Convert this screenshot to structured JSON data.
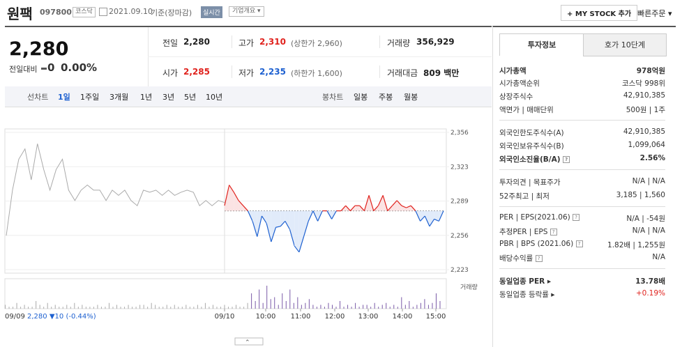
{
  "header": {
    "name": "원팩",
    "code": "097800",
    "market": "코스닥",
    "date": "2021.09.10",
    "basis": "기준(장마감)",
    "realtime": "실시간",
    "overview": "기업개요",
    "mystock": "MY STOCK 추가",
    "quick_order": "빠른주문"
  },
  "price": {
    "current": "2,280",
    "change_label": "전일대비",
    "change_value": "0",
    "change_pct": "0.00%",
    "prev_close_label": "전일",
    "prev_close": "2,280",
    "high_label": "고가",
    "high": "2,310",
    "upper_limit": "(상한가 2,960)",
    "volume_label": "거래량",
    "volume": "356,929",
    "open_label": "시가",
    "open": "2,285",
    "low_label": "저가",
    "low": "2,235",
    "lower_limit": "(하한가 1,600)",
    "amount_label": "거래대금",
    "amount": "809 백만"
  },
  "chart_tabs": {
    "line_label": "선차트",
    "line_items": [
      "1일",
      "1주일",
      "3개월",
      "1년",
      "3년",
      "5년",
      "10년"
    ],
    "candle_label": "봉차트",
    "candle_items": [
      "일봉",
      "주봉",
      "월봉"
    ]
  },
  "chart_data": {
    "type": "line",
    "y_ticks": [
      "2,356",
      "2,323",
      "2,289",
      "2,256",
      "2,223"
    ],
    "ylim": [
      2223,
      2356
    ],
    "base": 2280,
    "x_ticks": [
      "09/10",
      "10:00",
      "11:00",
      "12:00",
      "13:00",
      "14:00",
      "15:00"
    ],
    "prev_day": {
      "label": "09/09",
      "values": [
        2256,
        2300,
        2330,
        2340,
        2310,
        2345,
        2320,
        2300,
        2320,
        2330,
        2300,
        2290,
        2300,
        2305,
        2300,
        2300,
        2290,
        2300,
        2295,
        2300,
        2290,
        2285,
        2300,
        2298,
        2300,
        2295,
        2300,
        2295,
        2298,
        2300,
        2298,
        2285,
        2290,
        2285,
        2290,
        2288
      ]
    },
    "today": [
      2285,
      2305,
      2298,
      2290,
      2285,
      2280,
      2270,
      2255,
      2275,
      2268,
      2250,
      2264,
      2265,
      2270,
      2262,
      2246,
      2240,
      2255,
      2270,
      2280,
      2270,
      2280,
      2280,
      2272,
      2280,
      2280,
      2285,
      2280,
      2285,
      2285,
      2280,
      2295,
      2280,
      2285,
      2295,
      2280,
      2285,
      2290,
      2285,
      2283,
      2285,
      2280,
      2270,
      2275,
      2265,
      2272,
      2270,
      2280
    ],
    "volume_label": "거래량",
    "volume": [
      2,
      1,
      1,
      3,
      1,
      2,
      1,
      1,
      4,
      2,
      1,
      3,
      1,
      2,
      1,
      1,
      2,
      1,
      3,
      1,
      2,
      1,
      1,
      1,
      2,
      1,
      1,
      3,
      1,
      2,
      1,
      1,
      2,
      1,
      1,
      2,
      2,
      1,
      3,
      2,
      1,
      1,
      2,
      1,
      2,
      1,
      1,
      2,
      1,
      1,
      2,
      1,
      3,
      1,
      2,
      1,
      1,
      2,
      1,
      1,
      2,
      1,
      1,
      3,
      8,
      4,
      10,
      3,
      12,
      5,
      6,
      2,
      8,
      4,
      10,
      3,
      6,
      2,
      3,
      5,
      2,
      1,
      2,
      1,
      3,
      2,
      1,
      4,
      1,
      2,
      1,
      3,
      1,
      2,
      2,
      1,
      3,
      1,
      2,
      3,
      1,
      2,
      1,
      6,
      2,
      4,
      1,
      2,
      3,
      5,
      2,
      3,
      8,
      4
    ]
  },
  "chart_footer": {
    "date": "09/09",
    "price": "2,280",
    "change": "▼10 (-0.44%)"
  },
  "right_tabs": {
    "info": "투자정보",
    "quote": "호가 10단계"
  },
  "info": {
    "r1": {
      "label": "시가총액",
      "value": "978억원"
    },
    "r2": {
      "label": "시가총액순위",
      "value": "코스닥 998위"
    },
    "r3": {
      "label": "상장주식수",
      "value": "42,910,385"
    },
    "r4": {
      "label": "액면가 | 매매단위",
      "value": "500원 | 1주"
    },
    "r5": {
      "label": "외국인한도주식수(A)",
      "value": "42,910,385"
    },
    "r6": {
      "label": "외국인보유주식수(B)",
      "value": "1,099,064"
    },
    "r7": {
      "label": "외국인소진율(B/A)",
      "value": "2.56%"
    },
    "r8": {
      "label": "투자의견 | 목표주가",
      "value": "N/A | N/A"
    },
    "r9": {
      "label": "52주최고 | 최저",
      "value": "3,185 | 1,560"
    },
    "r10": {
      "label": "PER | EPS(2021.06)",
      "value": "N/A | -54원"
    },
    "r11": {
      "label": "추정PER | EPS",
      "value": "N/A | N/A"
    },
    "r12": {
      "label": "PBR | BPS (2021.06)",
      "value": "1.82배 | 1,255원"
    },
    "r13": {
      "label": "배당수익률",
      "value": "N/A"
    },
    "r14": {
      "label": "동일업종 PER",
      "value": "13.78배"
    },
    "r15": {
      "label": "동일업종 등락률",
      "value": "+0.19%"
    }
  },
  "colors": {
    "up": "#e0221d",
    "down": "#1d60d0",
    "prev_line": "#aaaaaa"
  }
}
